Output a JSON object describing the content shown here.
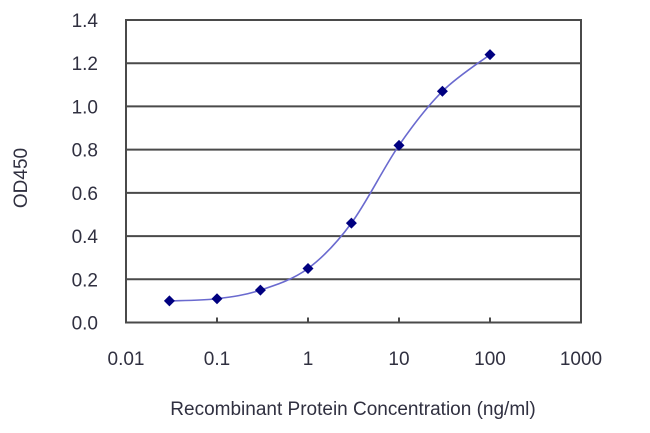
{
  "chart_data": {
    "type": "line",
    "title": "",
    "xlabel": "Recombinant Protein Concentration (ng/ml)",
    "ylabel": "OD450",
    "xscale": "log",
    "xlim": [
      0.01,
      1000
    ],
    "ylim": [
      0.0,
      1.4
    ],
    "x_ticks": [
      "0.01",
      "0.1",
      "1",
      "10",
      "100",
      "1000"
    ],
    "y_ticks": [
      "0.0",
      "0.2",
      "0.4",
      "0.6",
      "0.8",
      "1.0",
      "1.2",
      "1.4"
    ],
    "grid": "horizontal",
    "legend": "none",
    "series": [
      {
        "name": "OD450",
        "marker": "diamond",
        "line": "smooth",
        "x": [
          0.03,
          0.1,
          0.3,
          1,
          3,
          10,
          30,
          100
        ],
        "values": [
          0.1,
          0.11,
          0.15,
          0.25,
          0.46,
          0.82,
          1.07,
          1.24
        ]
      }
    ]
  },
  "colors": {
    "marker": "#000080",
    "line": "#6a6acf",
    "grid": "#4a4a4a",
    "frame": "#4a4a4a",
    "text": "#303040"
  }
}
